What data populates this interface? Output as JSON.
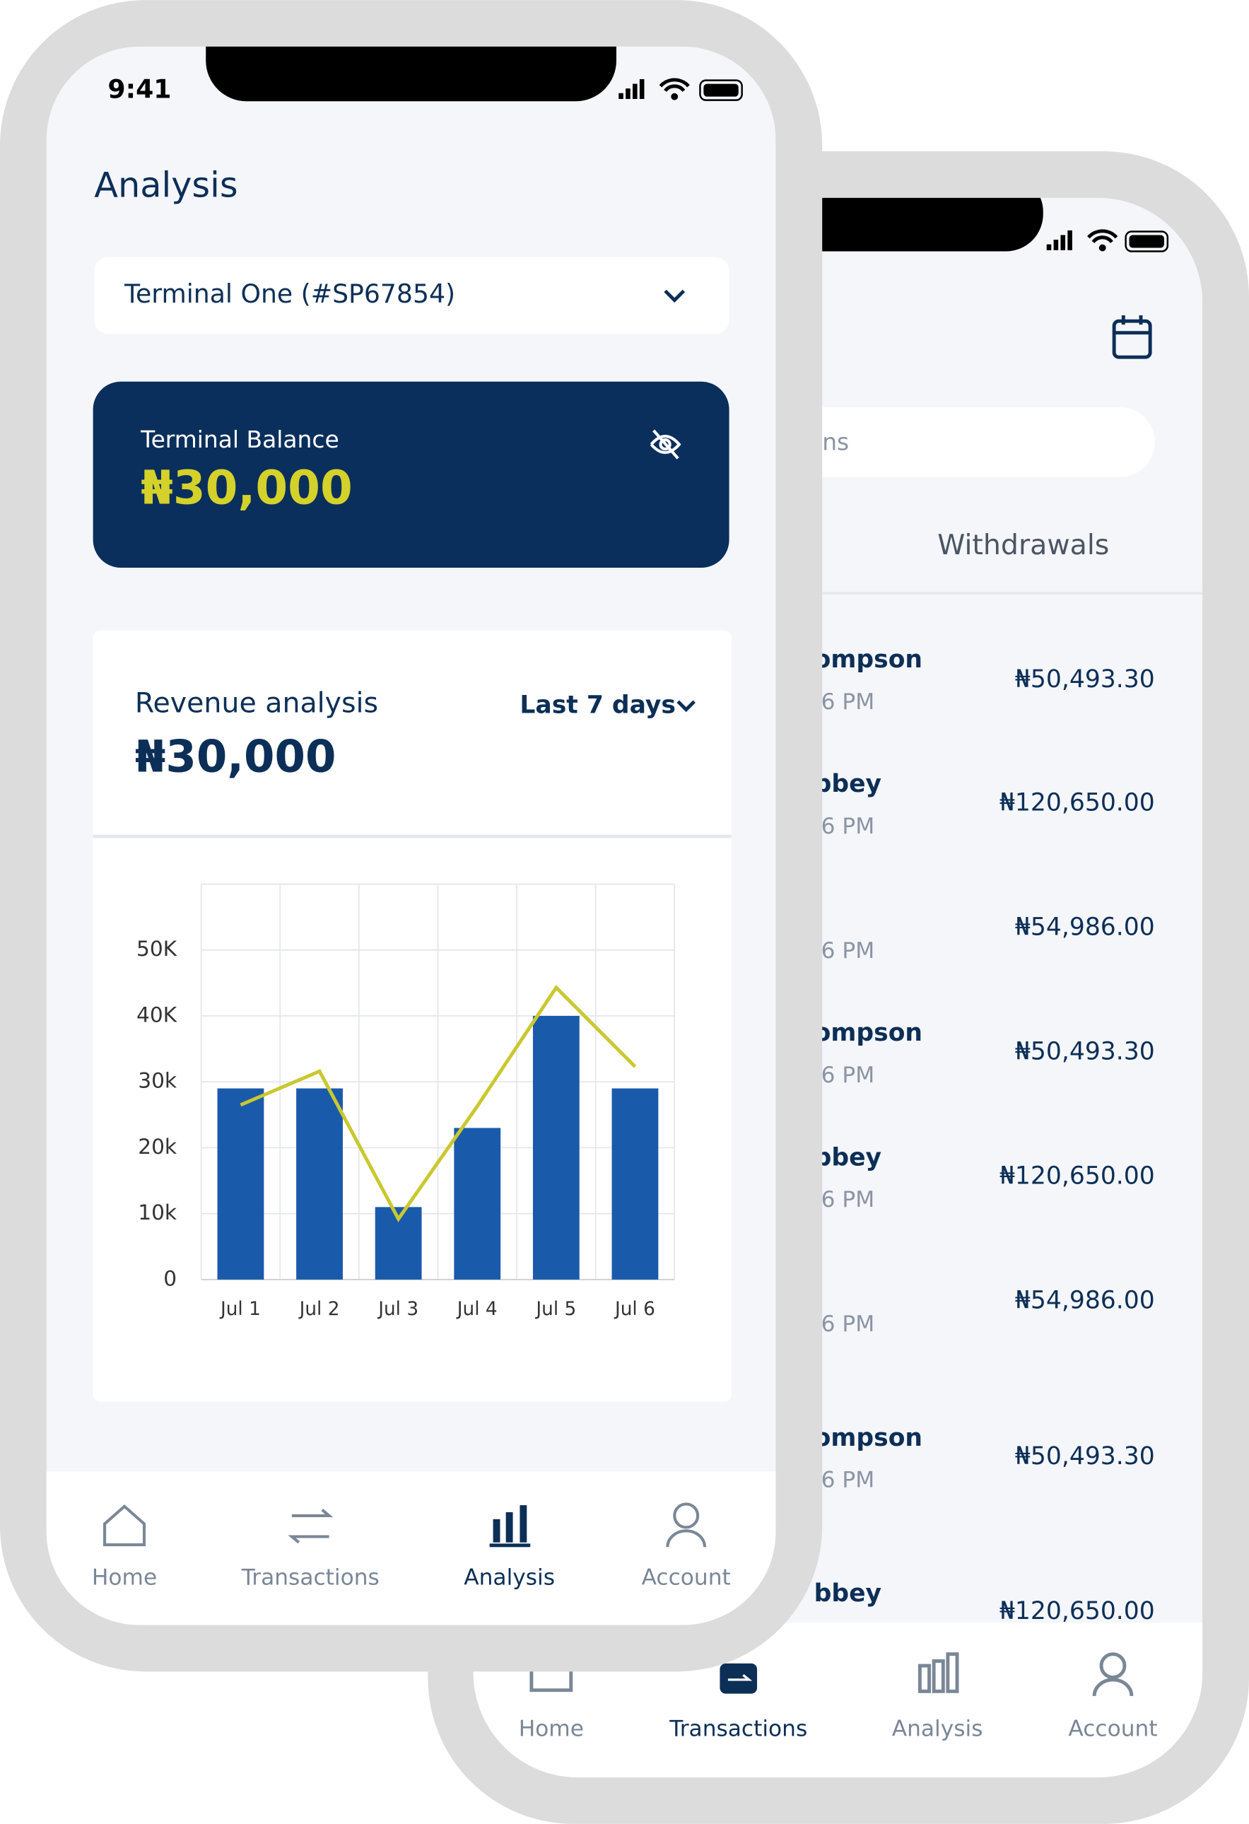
{
  "front": {
    "status_time": "9:41",
    "title": "Analysis",
    "terminal_select": "Terminal One (#SP67854)",
    "balance": {
      "label": "Terminal Balance",
      "amount": "₦30,000"
    },
    "revenue": {
      "label": "Revenue analysis",
      "period": "Last 7 days",
      "amount": "₦30,000"
    },
    "chart_data": {
      "type": "bar",
      "categories": [
        "Jul 1",
        "Jul 2",
        "Jul 3",
        "Jul 4",
        "Jul 5",
        "Jul 6"
      ],
      "series": [
        {
          "type": "bar",
          "color": "#1a5aab",
          "values": [
            29000,
            29000,
            11000,
            23000,
            40000,
            29000
          ]
        },
        {
          "type": "line",
          "color": "#c9c82f",
          "values": [
            26500,
            31600,
            9200,
            26300,
            44300,
            32300
          ]
        }
      ],
      "ylim": [
        0,
        60000
      ],
      "yticks": [
        0,
        {
          "value": 10000,
          "label": "10k"
        },
        {
          "value": 20000,
          "label": "20k"
        },
        {
          "value": 30000,
          "label": "30k"
        },
        {
          "value": 40000,
          "label": "40K"
        },
        {
          "value": 50000,
          "label": "50K"
        }
      ],
      "grid": true
    },
    "nav": [
      "Home",
      "Transactions",
      "Analysis",
      "Account"
    ],
    "nav_active": 2
  },
  "back": {
    "search_placeholder": "ns",
    "tab": "Withdrawals",
    "transactions": [
      {
        "name": "ompson",
        "time": ".6 PM",
        "amount": "₦50,493.30"
      },
      {
        "name": "bbey",
        "time": ".6 PM",
        "amount": "₦120,650.00"
      },
      {
        "time": ".6 PM",
        "amount": "₦54,986.00"
      },
      {
        "name": "ompson",
        "time": ".6 PM",
        "amount": "₦50,493.30"
      },
      {
        "name": "bbey",
        "time": ".6 PM",
        "amount": "₦120,650.00"
      },
      {
        "time": ".6 PM",
        "amount": "₦54,986.00"
      },
      {
        "name": "ompson",
        "time": ".6 PM",
        "amount": "₦50,493.30"
      },
      {
        "name": "bbey",
        "amount": "₦120,650.00"
      }
    ],
    "nav": [
      "Home",
      "Transactions",
      "Analysis",
      "Account"
    ],
    "nav_active": 1
  }
}
